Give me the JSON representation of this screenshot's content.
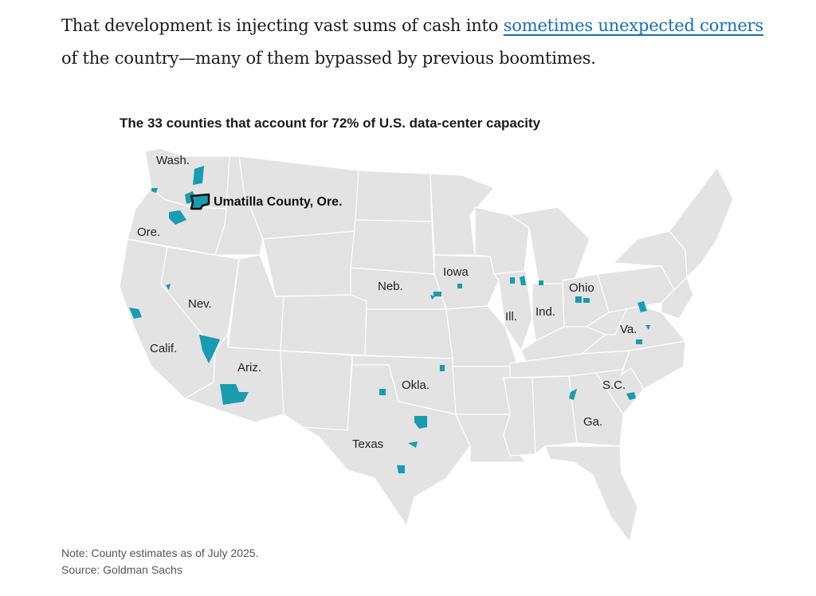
{
  "article": {
    "text_before": "That development is injecting vast sums of cash into ",
    "link_text": "sometimes unexpected corners",
    "text_after": " of the country—many of them bypassed by previous boomtimes."
  },
  "map": {
    "title": "The 33 counties that account for 72% of U.S. data-center capacity",
    "highlight_county": "Umatilla County, Ore.",
    "labels": {
      "wash": "Wash.",
      "ore": "Ore.",
      "calif": "Calif.",
      "nev": "Nev.",
      "ariz": "Ariz.",
      "neb": "Neb.",
      "iowa": "Iowa",
      "okla": "Okla.",
      "texas": "Texas",
      "ill": "Ill.",
      "ind": "Ind.",
      "ohio": "Ohio",
      "va": "Va.",
      "sc": "S.C.",
      "ga": "Ga."
    },
    "colors": {
      "land": "#e3e3e3",
      "county": "#1a9bb0",
      "highlight_outline": "#111111"
    }
  },
  "notes": {
    "note": "Note: County estimates as of July 2025.",
    "source": "Source: Goldman Sachs"
  }
}
